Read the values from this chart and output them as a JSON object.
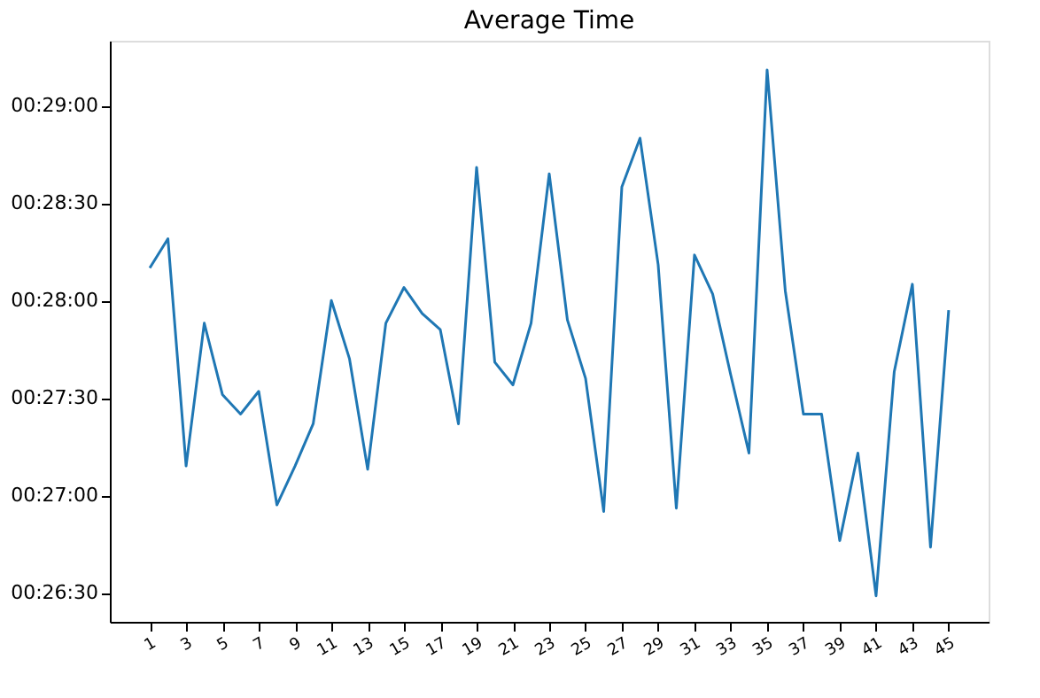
{
  "chart_data": {
    "type": "line",
    "title": "Average Time",
    "x": [
      1,
      2,
      3,
      4,
      5,
      6,
      7,
      8,
      9,
      10,
      11,
      12,
      13,
      14,
      15,
      16,
      17,
      18,
      19,
      20,
      21,
      22,
      23,
      24,
      25,
      26,
      27,
      28,
      29,
      30,
      31,
      32,
      33,
      34,
      35,
      36,
      37,
      38,
      39,
      40,
      41,
      42,
      43,
      44,
      45
    ],
    "series": [
      {
        "color": "#1f77b4",
        "values": [
          1690,
          1699,
          1629,
          1673,
          1651,
          1645,
          1652,
          1617,
          1629,
          1642,
          1680,
          1662,
          1628,
          1673,
          1684,
          1676,
          1671,
          1642,
          1721,
          1661,
          1654,
          1673,
          1719,
          1674,
          1656,
          1615,
          1715,
          1730,
          1691,
          1616,
          1694,
          1682,
          1657,
          1633,
          1751,
          1683,
          1645,
          1645,
          1606,
          1633,
          1589,
          1658,
          1685,
          1604,
          1677
        ]
      }
    ],
    "xlim": [
      -1.2,
      47.2
    ],
    "ylim": [
      1581,
      1760
    ],
    "xticks": [
      1,
      3,
      5,
      7,
      9,
      11,
      13,
      15,
      17,
      19,
      21,
      23,
      25,
      27,
      29,
      31,
      33,
      35,
      37,
      39,
      41,
      43,
      45
    ],
    "yticks": [
      {
        "value": 1590,
        "label": "00:26:30"
      },
      {
        "value": 1620,
        "label": "00:27:00"
      },
      {
        "value": 1650,
        "label": "00:27:30"
      },
      {
        "value": 1680,
        "label": "00:28:00"
      },
      {
        "value": 1710,
        "label": "00:28:30"
      },
      {
        "value": 1740,
        "label": "00:29:00"
      }
    ],
    "grid": false,
    "marker": "none",
    "line_style": "solid"
  }
}
